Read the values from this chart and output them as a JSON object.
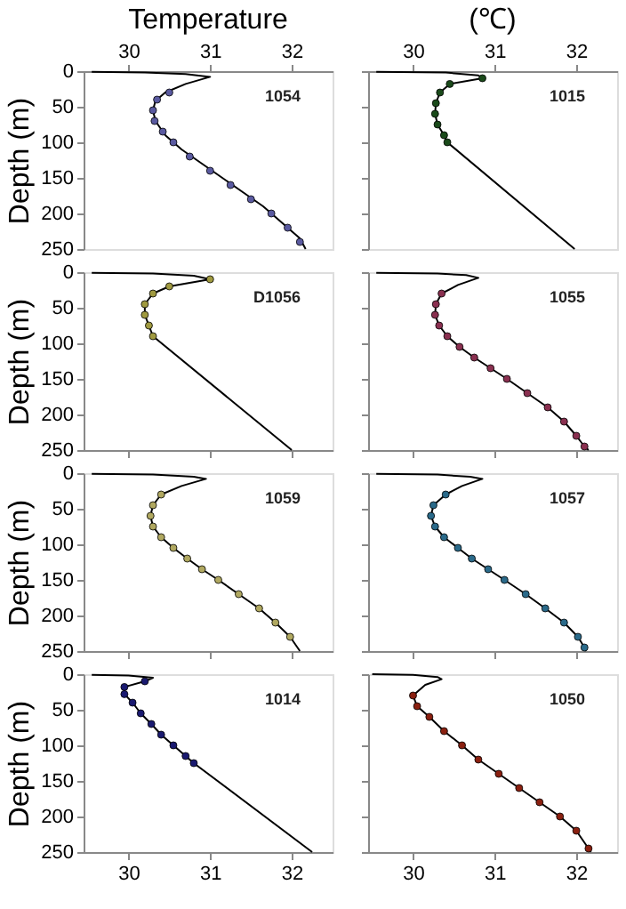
{
  "chart_data": [
    {
      "type": "line",
      "title": "Temperature",
      "ylabel": "Depth (m)",
      "annotations": [
        "1054"
      ],
      "xlim": [
        29.45,
        32.5
      ],
      "xticks": [
        30,
        31,
        32
      ],
      "ylim": [
        250,
        0
      ],
      "yticks": [
        0,
        50,
        100,
        150,
        200,
        250
      ],
      "series": [
        {
          "color": "#000000",
          "line_style": "solid",
          "marker": "none",
          "x": [
            29.55,
            30.2,
            30.7,
            31.0,
            30.7,
            30.45,
            30.33,
            30.3,
            30.33,
            30.45,
            30.65,
            30.9,
            31.15,
            31.4,
            31.65,
            31.9,
            32.1,
            32.17
          ],
          "values": [
            1,
            2,
            4,
            8,
            18,
            30,
            42,
            55,
            70,
            90,
            110,
            130,
            150,
            170,
            190,
            215,
            235,
            250
          ]
        },
        {
          "type": "scatter",
          "color": "#5a5aa0",
          "marker": "circle",
          "x": [
            30.5,
            30.35,
            30.3,
            30.32,
            30.42,
            30.55,
            30.75,
            31.0,
            31.25,
            31.5,
            31.75,
            31.95,
            32.1
          ],
          "values": [
            30,
            40,
            55,
            70,
            85,
            100,
            120,
            140,
            160,
            180,
            200,
            220,
            240
          ]
        }
      ]
    },
    {
      "type": "line",
      "title": "(℃)",
      "annotations": [
        "1015"
      ],
      "xlim": [
        29.45,
        32.5
      ],
      "xticks": [
        30,
        31,
        32
      ],
      "ylim": [
        250,
        0
      ],
      "yticks": [
        0,
        50,
        100,
        150,
        200,
        250
      ],
      "tick_labels": "x",
      "series": [
        {
          "color": "#000000",
          "line_style": "solid",
          "marker": "none",
          "x": [
            29.55,
            30.4,
            30.8,
            30.85,
            30.45,
            30.33,
            30.28,
            30.27,
            30.3,
            30.38,
            30.42,
            31.98
          ],
          "values": [
            1,
            2,
            6,
            10,
            18,
            30,
            45,
            60,
            75,
            90,
            100,
            250
          ]
        },
        {
          "type": "scatter",
          "color": "#1a4a1a",
          "marker": "circle",
          "x": [
            30.85,
            30.45,
            30.33,
            30.28,
            30.27,
            30.3,
            30.38,
            30.42
          ],
          "values": [
            10,
            18,
            30,
            45,
            60,
            75,
            90,
            100
          ]
        }
      ]
    },
    {
      "type": "line",
      "ylabel": "Depth (m)",
      "annotations": [
        "D1056"
      ],
      "xlim": [
        29.45,
        32.5
      ],
      "xticks": [
        30,
        31,
        32
      ],
      "ylim": [
        250,
        0
      ],
      "yticks": [
        0,
        50,
        100,
        150,
        200,
        250
      ],
      "tick_labels": "y",
      "series": [
        {
          "color": "#000000",
          "line_style": "solid",
          "marker": "none",
          "x": [
            29.55,
            30.3,
            30.8,
            31.0,
            30.5,
            30.3,
            30.2,
            30.2,
            30.25,
            30.3,
            32.0
          ],
          "values": [
            1,
            2,
            5,
            10,
            20,
            30,
            45,
            60,
            75,
            90,
            250
          ]
        },
        {
          "type": "scatter",
          "color": "#a09a40",
          "marker": "circle",
          "x": [
            31.0,
            30.5,
            30.3,
            30.2,
            30.2,
            30.25,
            30.3
          ],
          "values": [
            10,
            20,
            30,
            45,
            60,
            75,
            90
          ]
        }
      ]
    },
    {
      "type": "line",
      "annotations": [
        "1055"
      ],
      "xlim": [
        29.45,
        32.5
      ],
      "xticks": [
        30,
        31,
        32
      ],
      "ylim": [
        250,
        0
      ],
      "yticks": [
        0,
        50,
        100,
        150,
        200,
        250
      ],
      "tick_labels": false,
      "series": [
        {
          "color": "#000000",
          "line_style": "solid",
          "marker": "none",
          "x": [
            29.55,
            30.3,
            30.65,
            30.8,
            30.55,
            30.35,
            30.28,
            30.27,
            30.32,
            30.42,
            30.57,
            30.75,
            30.95,
            31.15,
            31.4,
            31.65,
            31.85,
            32.0,
            32.1,
            32.15
          ],
          "values": [
            1,
            2,
            4,
            8,
            18,
            30,
            45,
            60,
            75,
            90,
            105,
            120,
            135,
            150,
            170,
            190,
            210,
            230,
            245,
            250
          ]
        },
        {
          "type": "scatter",
          "color": "#8a3050",
          "marker": "circle",
          "x": [
            30.35,
            30.28,
            30.27,
            30.32,
            30.42,
            30.57,
            30.75,
            30.95,
            31.15,
            31.4,
            31.65,
            31.85,
            32.0,
            32.1
          ],
          "values": [
            30,
            45,
            60,
            75,
            90,
            105,
            120,
            135,
            150,
            170,
            190,
            210,
            230,
            245
          ]
        }
      ]
    },
    {
      "type": "line",
      "ylabel": "Depth (m)",
      "annotations": [
        "1059"
      ],
      "xlim": [
        29.45,
        32.5
      ],
      "xticks": [
        30,
        31,
        32
      ],
      "ylim": [
        250,
        0
      ],
      "yticks": [
        0,
        50,
        100,
        150,
        200,
        250
      ],
      "tick_labels": "y",
      "series": [
        {
          "color": "#000000",
          "line_style": "solid",
          "marker": "none",
          "x": [
            29.55,
            30.3,
            30.8,
            30.95,
            30.65,
            30.4,
            30.3,
            30.27,
            30.3,
            30.4,
            30.55,
            30.72,
            30.9,
            31.1,
            31.35,
            31.6,
            31.8,
            31.98,
            32.1
          ],
          "values": [
            1,
            2,
            5,
            8,
            18,
            30,
            45,
            60,
            75,
            90,
            105,
            120,
            135,
            150,
            170,
            190,
            210,
            230,
            250
          ]
        },
        {
          "type": "scatter",
          "color": "#b0a860",
          "marker": "circle",
          "x": [
            30.4,
            30.3,
            30.27,
            30.3,
            30.4,
            30.55,
            30.72,
            30.9,
            31.1,
            31.35,
            31.6,
            31.8,
            31.98
          ],
          "values": [
            30,
            45,
            60,
            75,
            90,
            105,
            120,
            135,
            150,
            170,
            190,
            210,
            230
          ]
        }
      ]
    },
    {
      "type": "line",
      "annotations": [
        "1057"
      ],
      "xlim": [
        29.45,
        32.5
      ],
      "xticks": [
        30,
        31,
        32
      ],
      "ylim": [
        250,
        0
      ],
      "yticks": [
        0,
        50,
        100,
        150,
        200,
        250
      ],
      "tick_labels": false,
      "series": [
        {
          "color": "#000000",
          "line_style": "solid",
          "marker": "none",
          "x": [
            29.55,
            30.3,
            30.7,
            30.85,
            30.6,
            30.4,
            30.25,
            30.22,
            30.27,
            30.38,
            30.55,
            30.72,
            30.92,
            31.12,
            31.38,
            31.62,
            31.85,
            32.02,
            32.1,
            32.12
          ],
          "values": [
            1,
            2,
            5,
            8,
            18,
            30,
            45,
            60,
            75,
            90,
            105,
            120,
            135,
            150,
            170,
            190,
            210,
            230,
            245,
            250
          ]
        },
        {
          "type": "scatter",
          "color": "#2a6a8a",
          "marker": "circle",
          "x": [
            30.4,
            30.25,
            30.22,
            30.27,
            30.38,
            30.55,
            30.72,
            30.92,
            31.12,
            31.38,
            31.62,
            31.85,
            32.02,
            32.1
          ],
          "values": [
            30,
            45,
            60,
            75,
            90,
            105,
            120,
            135,
            150,
            170,
            190,
            210,
            230,
            245
          ]
        }
      ]
    },
    {
      "type": "line",
      "ylabel": "Depth (m)",
      "annotations": [
        "1014"
      ],
      "xlim": [
        29.45,
        32.5
      ],
      "xticks": [
        30,
        31,
        32
      ],
      "ylim": [
        250,
        0
      ],
      "yticks": [
        0,
        50,
        100,
        150,
        200,
        250
      ],
      "series": [
        {
          "color": "#000000",
          "line_style": "solid",
          "marker": "none",
          "x": [
            29.55,
            30.0,
            30.3,
            30.2,
            29.95,
            29.95,
            30.05,
            30.15,
            30.28,
            30.4,
            30.55,
            30.7,
            30.8,
            32.25
          ],
          "values": [
            1,
            2,
            5,
            10,
            18,
            28,
            40,
            55,
            70,
            85,
            100,
            115,
            125,
            250
          ]
        },
        {
          "type": "scatter",
          "color": "#1a1a70",
          "marker": "circle",
          "x": [
            30.2,
            29.95,
            29.95,
            30.05,
            30.15,
            30.28,
            30.4,
            30.55,
            30.7,
            30.8
          ],
          "values": [
            10,
            18,
            28,
            40,
            55,
            70,
            85,
            100,
            115,
            125
          ]
        }
      ]
    },
    {
      "type": "line",
      "annotations": [
        "1050"
      ],
      "xlim": [
        29.45,
        32.5
      ],
      "xticks": [
        30,
        31,
        32
      ],
      "ylim": [
        250,
        0
      ],
      "yticks": [
        0,
        50,
        100,
        150,
        200,
        250
      ],
      "tick_labels": "x",
      "series": [
        {
          "color": "#000000",
          "line_style": "solid",
          "marker": "none",
          "x": [
            29.5,
            30.0,
            30.3,
            30.35,
            30.15,
            30.0,
            30.05,
            30.2,
            30.38,
            30.6,
            30.8,
            31.05,
            31.3,
            31.55,
            31.8,
            32.0,
            32.15,
            32.18
          ],
          "values": [
            0,
            1,
            4,
            7,
            15,
            30,
            45,
            60,
            80,
            100,
            120,
            140,
            160,
            180,
            200,
            220,
            245,
            250
          ]
        },
        {
          "type": "scatter",
          "color": "#8a2010",
          "marker": "circle",
          "x": [
            30.0,
            30.05,
            30.2,
            30.38,
            30.6,
            30.8,
            31.05,
            31.3,
            31.55,
            31.8,
            32.0,
            32.15
          ],
          "values": [
            30,
            45,
            60,
            80,
            100,
            120,
            140,
            160,
            180,
            200,
            220,
            245
          ]
        }
      ]
    }
  ]
}
